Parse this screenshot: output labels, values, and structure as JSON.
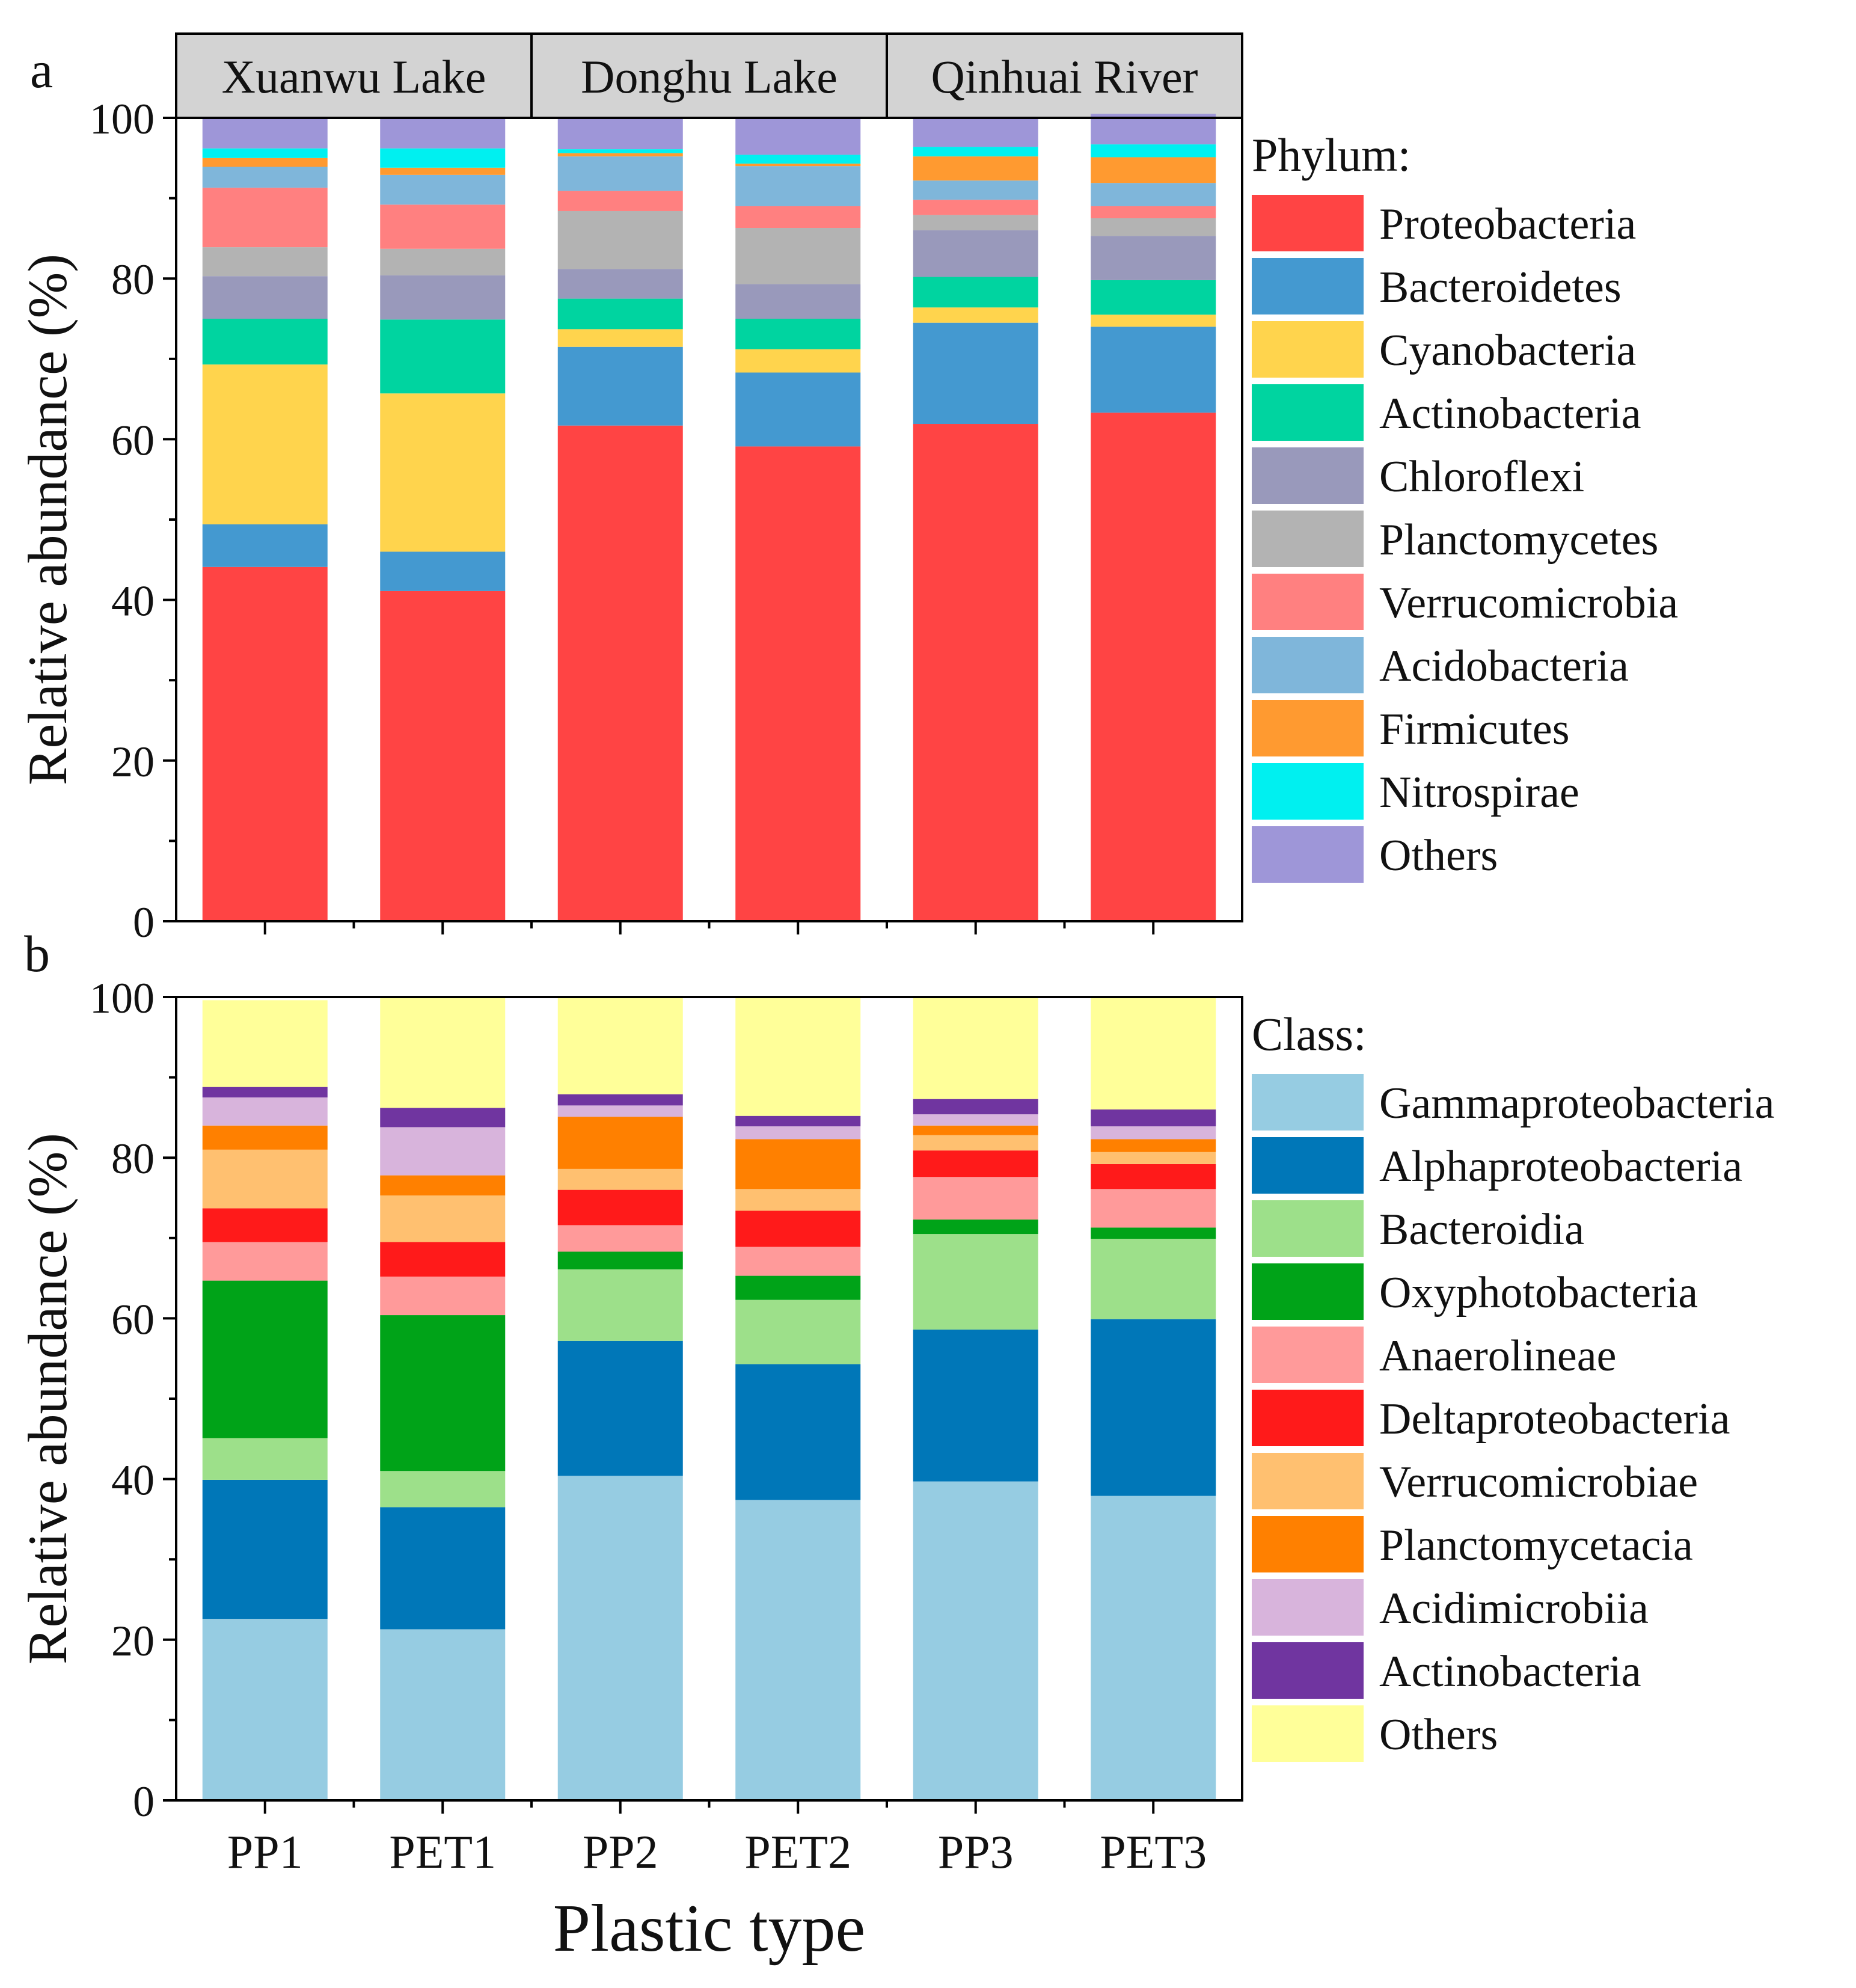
{
  "axis_label_x": "Plastic type",
  "chart_data": [
    {
      "panel": "a",
      "type": "bar",
      "stacked": true,
      "ylabel": "Relative abundance (%)",
      "ylim": [
        0,
        100
      ],
      "yticks": [
        0,
        20,
        40,
        60,
        80,
        100
      ],
      "legend_title": "Phylum:",
      "facets": [
        "Xuanwu Lake",
        "Donghu Lake",
        "Qinhuai River"
      ],
      "categories": [
        "PP1",
        "PET1",
        "PP2",
        "PET2",
        "PP3",
        "PET3"
      ],
      "series": [
        {
          "name": "Proteobacteria",
          "color": "#ff4444",
          "values": [
            44.1,
            41.1,
            61.7,
            59.1,
            61.9,
            63.3
          ]
        },
        {
          "name": "Bacteroidetes",
          "color": "#4499d0",
          "values": [
            5.3,
            4.9,
            9.8,
            9.2,
            12.6,
            10.7
          ]
        },
        {
          "name": "Cyanobacteria",
          "color": "#ffd44d",
          "values": [
            19.9,
            19.7,
            2.2,
            2.9,
            1.9,
            1.5
          ]
        },
        {
          "name": "Actinobacteria",
          "color": "#00d4a0",
          "values": [
            5.7,
            9.2,
            3.8,
            3.8,
            3.8,
            4.3
          ]
        },
        {
          "name": "Chloroflexi",
          "color": "#9999bb",
          "values": [
            5.3,
            5.5,
            3.7,
            4.3,
            5.8,
            5.5
          ]
        },
        {
          "name": "Planctomycetes",
          "color": "#b3b3b3",
          "values": [
            3.6,
            3.3,
            7.2,
            7.0,
            1.9,
            2.2
          ]
        },
        {
          "name": "Verrucomicrobia",
          "color": "#ff8080",
          "values": [
            7.4,
            5.5,
            2.5,
            2.7,
            1.9,
            1.5
          ]
        },
        {
          "name": "Acidobacteria",
          "color": "#7fb6da",
          "values": [
            2.6,
            3.7,
            4.3,
            5.0,
            2.4,
            2.9
          ]
        },
        {
          "name": "Firmicutes",
          "color": "#ff9a30",
          "values": [
            1.1,
            0.9,
            0.4,
            0.3,
            3.0,
            3.2
          ]
        },
        {
          "name": "Nitrospirae",
          "color": "#00f0f0",
          "values": [
            1.2,
            2.4,
            0.5,
            1.1,
            1.2,
            1.6
          ]
        },
        {
          "name": "Others",
          "color": "#9e96d8",
          "values": [
            3.8,
            3.8,
            3.9,
            4.6,
            3.6,
            3.8
          ]
        }
      ]
    },
    {
      "panel": "b",
      "type": "bar",
      "stacked": true,
      "ylabel": "Relative abundance (%)",
      "xlabel": "Plastic type",
      "ylim": [
        0,
        100
      ],
      "yticks": [
        0,
        20,
        40,
        60,
        80,
        100
      ],
      "legend_title": "Class:",
      "categories": [
        "PP1",
        "PET1",
        "PP2",
        "PET2",
        "PP3",
        "PET3"
      ],
      "series": [
        {
          "name": "Gammaproteobacteria",
          "color": "#96cce2",
          "values": [
            22.6,
            21.3,
            40.4,
            37.4,
            39.7,
            37.9
          ]
        },
        {
          "name": "Alphaproteobacteria",
          "color": "#0077b8",
          "values": [
            17.3,
            15.2,
            16.8,
            16.9,
            18.9,
            22.0
          ]
        },
        {
          "name": "Bacteroidia",
          "color": "#9de08a",
          "values": [
            5.2,
            4.5,
            8.9,
            8.0,
            11.9,
            10.0
          ]
        },
        {
          "name": "Oxyphotobacteria",
          "color": "#00a318",
          "values": [
            19.6,
            19.4,
            2.2,
            3.0,
            1.8,
            1.4
          ]
        },
        {
          "name": "Anaerolineae",
          "color": "#ff9a9a",
          "values": [
            4.8,
            4.8,
            3.3,
            3.6,
            5.3,
            4.8
          ]
        },
        {
          "name": "Deltaproteobacteria",
          "color": "#ff1a1a",
          "values": [
            4.2,
            4.3,
            4.4,
            4.5,
            3.3,
            3.1
          ]
        },
        {
          "name": "Verrucomicrobiae",
          "color": "#ffc070",
          "values": [
            7.3,
            5.8,
            2.6,
            2.7,
            1.9,
            1.5
          ]
        },
        {
          "name": "Planctomycetacia",
          "color": "#ff8000",
          "values": [
            3.0,
            2.5,
            6.5,
            6.2,
            1.2,
            1.6
          ]
        },
        {
          "name": "Acidimicrobiia",
          "color": "#d8b4dc",
          "values": [
            3.5,
            6.0,
            1.4,
            1.6,
            1.4,
            1.6
          ]
        },
        {
          "name": "Actinobacteria",
          "color": "#7035a0",
          "values": [
            1.3,
            2.4,
            1.4,
            1.3,
            1.9,
            2.1
          ]
        },
        {
          "name": "Others",
          "color": "#ffff99",
          "values": [
            10.8,
            13.8,
            12.1,
            14.8,
            12.7,
            14.0
          ]
        }
      ]
    }
  ]
}
